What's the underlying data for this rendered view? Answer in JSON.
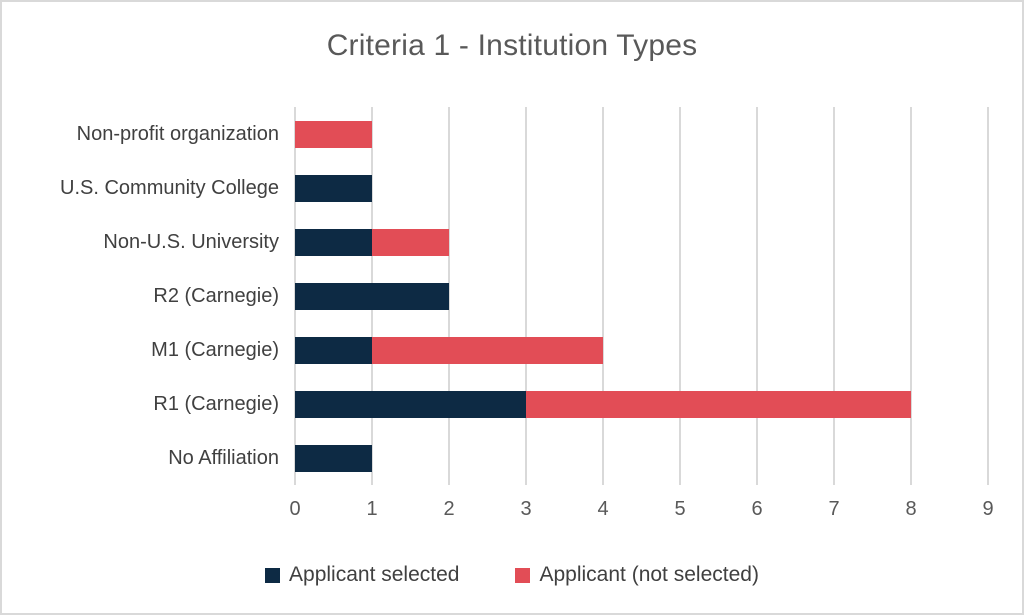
{
  "chart_data": {
    "type": "bar",
    "orientation": "horizontal",
    "stacked": true,
    "title": "Criteria 1 - Institution Types",
    "categories_top_to_bottom": [
      "Non-profit organization",
      "U.S. Community College",
      "Non-U.S. University",
      "R2 (Carnegie)",
      "M1 (Carnegie)",
      "R1 (Carnegie)",
      "No Affiliation"
    ],
    "series": [
      {
        "name": "Applicant selected",
        "color": "#0d2a44",
        "values": [
          0,
          1,
          1,
          2,
          1,
          3,
          1
        ]
      },
      {
        "name": "Applicant (not selected)",
        "color": "#e24d56",
        "values": [
          1,
          0,
          1,
          0,
          3,
          5,
          0
        ]
      }
    ],
    "stacked_totals_top_to_bottom": [
      1,
      1,
      2,
      2,
      4,
      8,
      1
    ],
    "xlabel": "",
    "ylabel": "",
    "xlim": [
      0,
      9
    ],
    "x_ticks": [
      0,
      1,
      2,
      3,
      4,
      5,
      6,
      7,
      8,
      9
    ],
    "grid": "vertical",
    "legend_position": "bottom"
  },
  "colors": {
    "series_selected": "#0d2a44",
    "series_not_selected": "#e24d56",
    "gridline": "#d9d9d9",
    "canvas_border": "#d9d9d9",
    "title_text": "#595959",
    "axis_tick_text": "#595959",
    "category_text": "#404040",
    "legend_text": "#404040",
    "background": "#ffffff"
  }
}
